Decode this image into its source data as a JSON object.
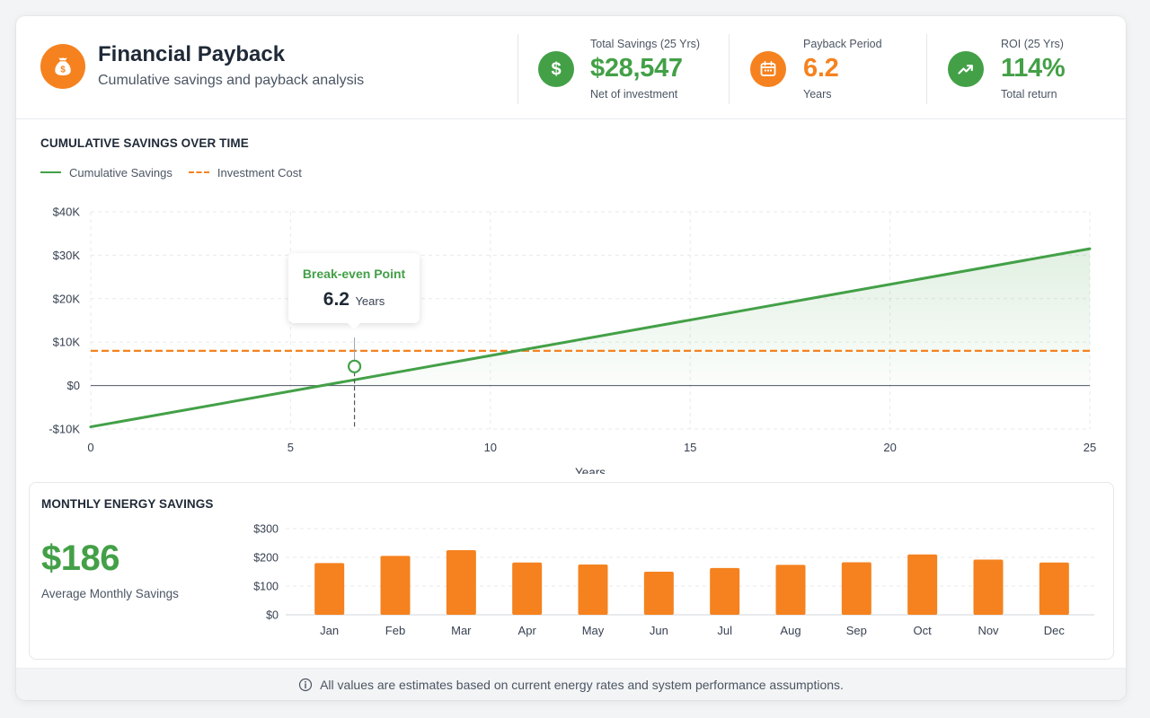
{
  "header": {
    "title": "Financial Payback",
    "subtitle": "Cumulative savings and payback analysis",
    "icon": "money-bag-icon"
  },
  "stats": [
    {
      "label": "Total Savings (25 Yrs)",
      "value": "$28,547",
      "sub": "Net of investment",
      "icon": "dollar-icon",
      "color": "#43a047"
    },
    {
      "label": "Payback Period",
      "value": "6.2",
      "sub": "Years",
      "icon": "calendar-icon",
      "color": "#f5821f"
    },
    {
      "label": "ROI (25 Yrs)",
      "value": "114%",
      "sub": "Total return",
      "icon": "trending-up-icon",
      "color": "#43a047"
    }
  ],
  "cumulative": {
    "section_title": "CUMULATIVE SAVINGS OVER TIME",
    "legend": {
      "savings": "Cumulative Savings",
      "investment": "Investment Cost"
    },
    "tooltip": {
      "title": "Break-even Point",
      "value": "6.2",
      "unit": "Years"
    }
  },
  "monthly": {
    "section_title": "MONTHLY ENERGY SAVINGS",
    "big_value": "$186",
    "big_label": "Average Monthly Savings"
  },
  "footer": {
    "text": "All values are estimates based on current energy rates and system performance assumptions.",
    "icon": "info-icon"
  },
  "colors": {
    "green": "#43a047",
    "orange": "#f5821f",
    "grid": "#e5e7eb",
    "text": "#1f2937",
    "muted": "#4b5563"
  },
  "chart_data": [
    {
      "type": "line",
      "title": "CUMULATIVE SAVINGS OVER TIME",
      "xlabel": "Years",
      "ylabel": "",
      "xlim": [
        0,
        25
      ],
      "ylim": [
        -10000,
        40000
      ],
      "x_ticks": [
        0,
        5,
        10,
        15,
        20,
        25
      ],
      "y_ticks": [
        -10000,
        0,
        10000,
        20000,
        30000,
        40000
      ],
      "y_tick_labels": [
        "-$10K",
        "$0",
        "$10K",
        "$20K",
        "$30K",
        "$40K"
      ],
      "series": [
        {
          "name": "Cumulative Savings",
          "style": "solid",
          "color": "#43a047",
          "x": [
            0,
            25
          ],
          "y": [
            -9500,
            31500
          ]
        },
        {
          "name": "Investment Cost",
          "style": "dashed",
          "color": "#f5821f",
          "x": [
            0,
            25
          ],
          "y": [
            8000,
            8000
          ]
        }
      ],
      "marker": {
        "x": 6.6,
        "y": 4400
      },
      "grid": true,
      "legend": "top-left"
    },
    {
      "type": "bar",
      "title": "MONTHLY ENERGY SAVINGS",
      "categories": [
        "Jan",
        "Feb",
        "Mar",
        "Apr",
        "May",
        "Jun",
        "Jul",
        "Aug",
        "Sep",
        "Oct",
        "Nov",
        "Dec"
      ],
      "values": [
        180,
        205,
        225,
        182,
        175,
        150,
        163,
        174,
        183,
        210,
        192,
        182
      ],
      "ylim": [
        0,
        300
      ],
      "y_ticks": [
        0,
        100,
        200,
        300
      ],
      "y_tick_labels": [
        "$0",
        "$100",
        "$200",
        "$300"
      ],
      "color": "#f5821f",
      "grid": true
    }
  ]
}
